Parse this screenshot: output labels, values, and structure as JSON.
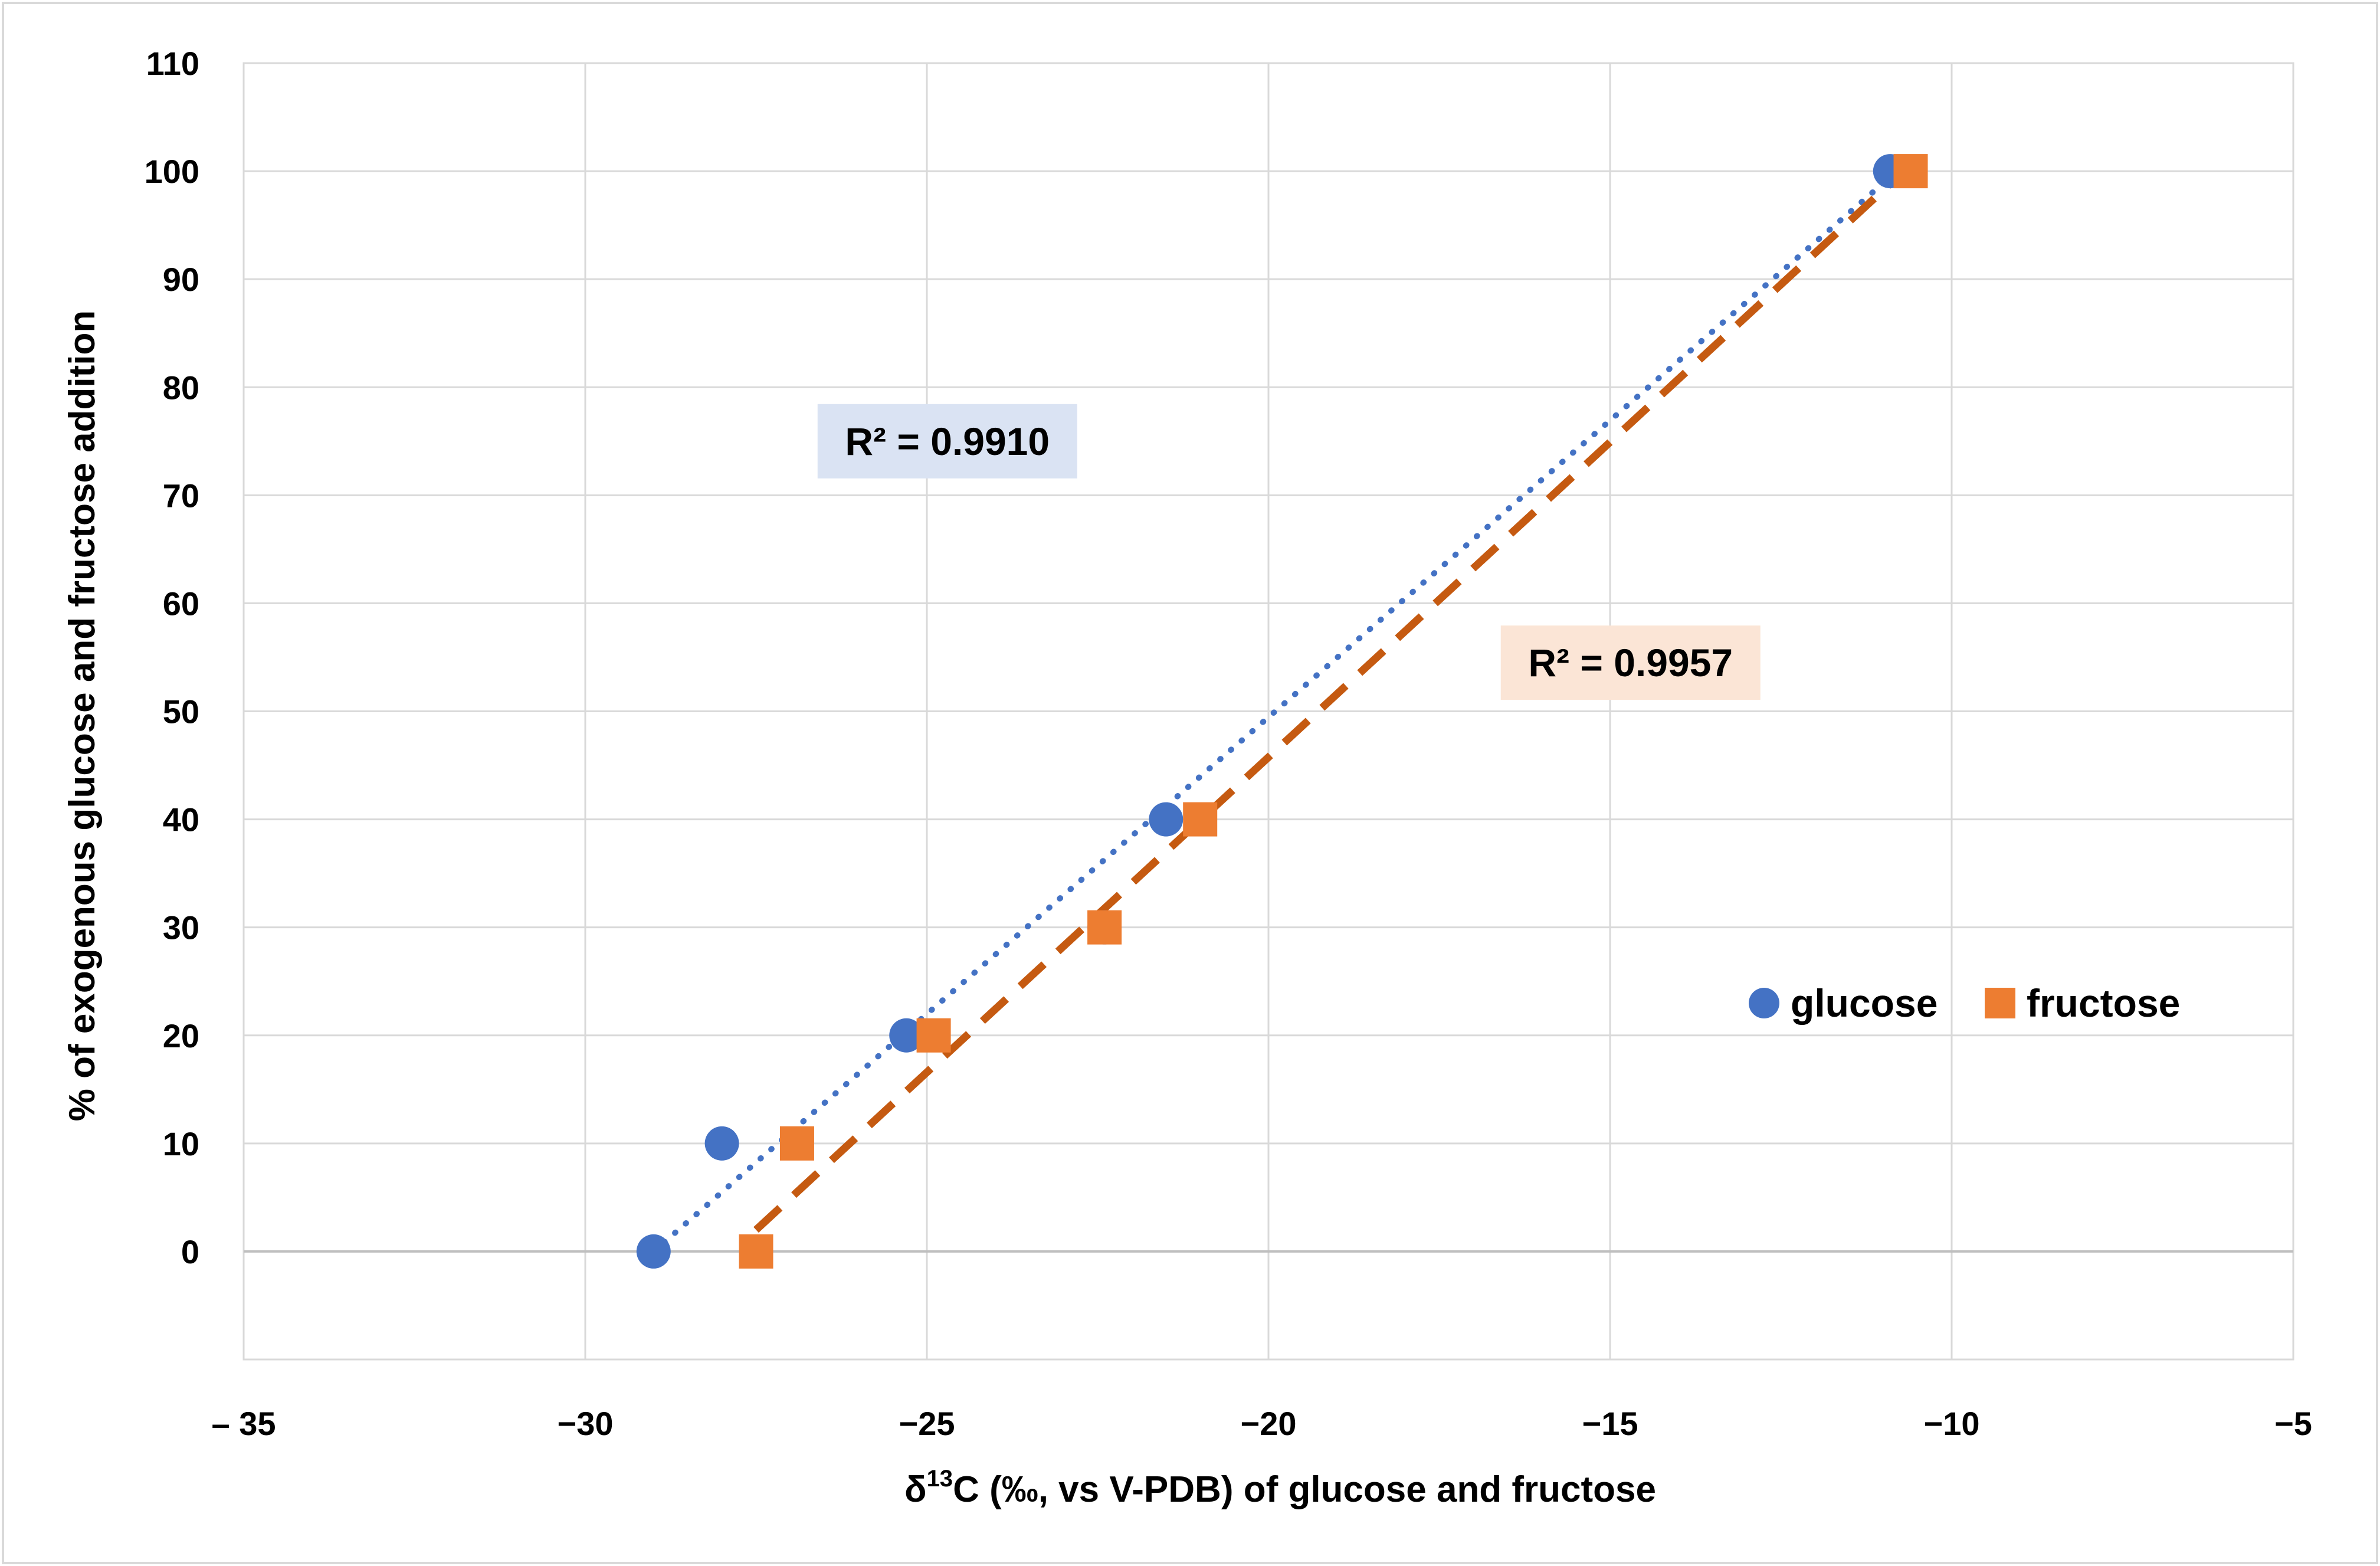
{
  "chart_data": {
    "type": "scatter",
    "xlabel_main": "δ",
    "xlabel_sup": "13",
    "xlabel_rest": "C (‰, vs V-PDB) of glucose and fructose",
    "ylabel": "% of exogenous glucose and fructose addition",
    "xlim": [
      -35,
      -5
    ],
    "ylim": [
      -10,
      110
    ],
    "x_ticks": [
      -35,
      -30,
      -25,
      -20,
      -15,
      -10,
      -5
    ],
    "x_tick_labels": [
      "– 35",
      "−30",
      "−25",
      "−20",
      "−15",
      "−10",
      "−5"
    ],
    "y_ticks": [
      0,
      10,
      20,
      30,
      40,
      50,
      60,
      70,
      80,
      90,
      100,
      110
    ],
    "y_tick_labels": [
      "0",
      "10",
      "20",
      "30",
      "40",
      "50",
      "60",
      "70",
      "80",
      "90",
      "100",
      "110"
    ],
    "grid": true,
    "legend_position": "right",
    "series": [
      {
        "name": "glucose",
        "marker": "circle",
        "color": "#4472C4",
        "trend_color": "#4472C4",
        "trend_style": "dotted",
        "points": [
          {
            "x": -29.0,
            "y": 0
          },
          {
            "x": -28.0,
            "y": 10
          },
          {
            "x": -25.3,
            "y": 20
          },
          {
            "x": -22.4,
            "y": 30
          },
          {
            "x": -21.5,
            "y": 40
          },
          {
            "x": -10.9,
            "y": 100
          }
        ],
        "trend": {
          "x0": -29.0,
          "y0": 0,
          "x1": -10.8,
          "y1": 100
        },
        "r2": "R² = 0.9910",
        "r2_box_color": "#DAE3F3",
        "r2_anchor": {
          "x": -24.7,
          "y": 75
        }
      },
      {
        "name": "fructose",
        "marker": "square",
        "color": "#ED7D31",
        "trend_color": "#C55A11",
        "trend_style": "dashed",
        "points": [
          {
            "x": -27.5,
            "y": 0
          },
          {
            "x": -26.9,
            "y": 10
          },
          {
            "x": -24.9,
            "y": 20
          },
          {
            "x": -22.4,
            "y": 30
          },
          {
            "x": -21.0,
            "y": 40
          },
          {
            "x": -10.6,
            "y": 100
          }
        ],
        "trend": {
          "x0": -27.5,
          "y0": 2,
          "x1": -10.7,
          "y1": 100
        },
        "r2": "R² = 0.9957",
        "r2_box_color": "#FBE5D6",
        "r2_anchor": {
          "x": -14.7,
          "y": 54.5
        }
      }
    ]
  }
}
